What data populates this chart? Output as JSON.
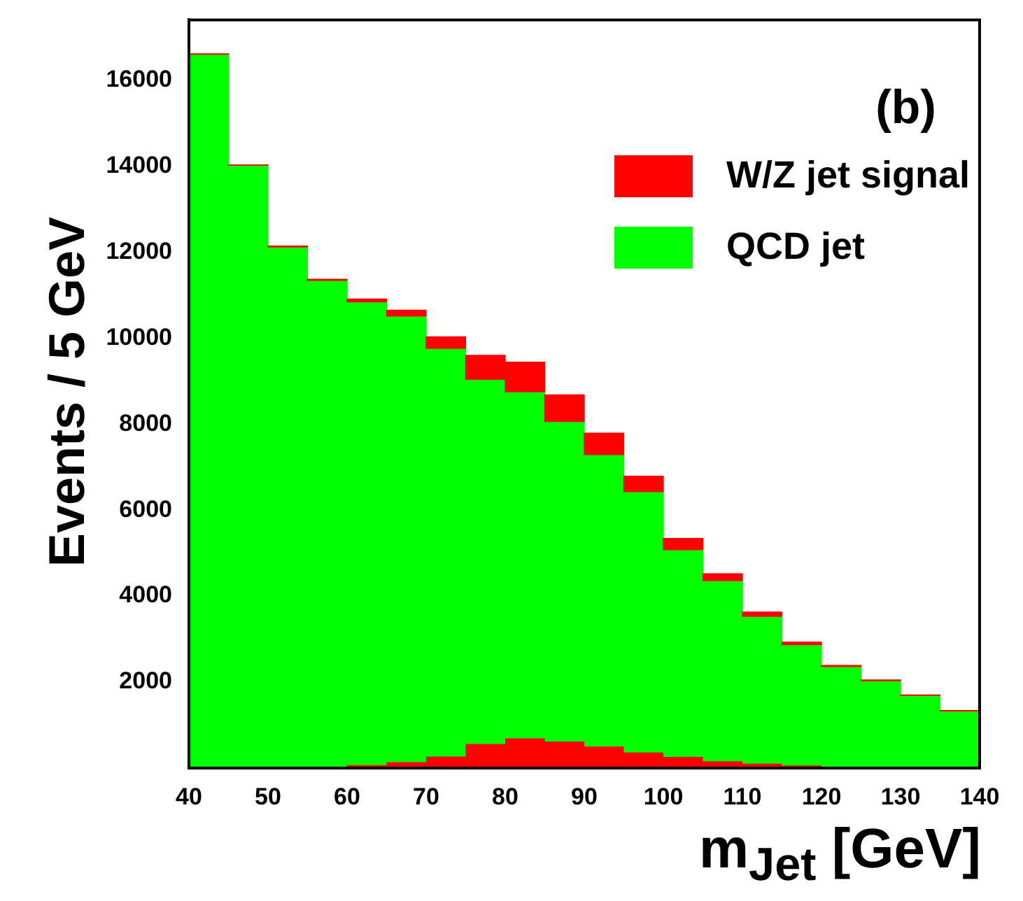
{
  "chart_data": {
    "type": "bar",
    "xlabel": "m$_{Jet}$ [GeV]",
    "ylabel": "Events / 5 GeV",
    "annotations": [
      "(b)"
    ],
    "x": [
      42.5,
      47.5,
      52.5,
      57.5,
      62.5,
      67.5,
      72.5,
      77.5,
      82.5,
      87.5,
      92.5,
      97.5,
      102.5,
      107.5,
      112.5,
      117.5,
      122.5,
      127.5,
      132.5,
      137.5
    ],
    "stacked": true,
    "legend": "top right",
    "grid": false,
    "xlim": [
      40,
      140
    ],
    "xticks": [
      40,
      50,
      60,
      70,
      80,
      90,
      100,
      110,
      120,
      130,
      140
    ],
    "ylim": [
      0,
      17400
    ],
    "yticks": [
      2000,
      4000,
      6000,
      8000,
      10000,
      12000,
      14000,
      16000
    ],
    "series": [
      {
        "name": "QCD jet",
        "color": "#00ff00",
        "values": [
          16600,
          14020,
          12120,
          11340,
          10840,
          10510,
          9760,
          9040,
          8750,
          8060,
          7290,
          6430,
          5080,
          4360,
          3530,
          2870,
          2360,
          2030,
          1690,
          1330
        ]
      },
      {
        "name": "W/Z jet signal",
        "color": "#ff0000",
        "values": [
          10,
          10,
          20,
          30,
          70,
          140,
          270,
          560,
          690,
          620,
          500,
          360,
          260,
          160,
          100,
          60,
          30,
          20,
          10,
          10
        ]
      },
      {
        "type": "area",
        "color": "#ff0000",
        "x": [
          42.5,
          47.5,
          52.5,
          57.5,
          62.5,
          67.5,
          72.5,
          77.5,
          82.5,
          87.5,
          92.5,
          97.5,
          102.5,
          107.5,
          112.5,
          117.5,
          122.5,
          127.5,
          132.5,
          137.5
        ],
        "values": [
          10,
          10,
          20,
          30,
          70,
          140,
          270,
          560,
          690,
          620,
          500,
          360,
          260,
          160,
          100,
          60,
          30,
          20,
          10,
          10
        ]
      }
    ]
  }
}
